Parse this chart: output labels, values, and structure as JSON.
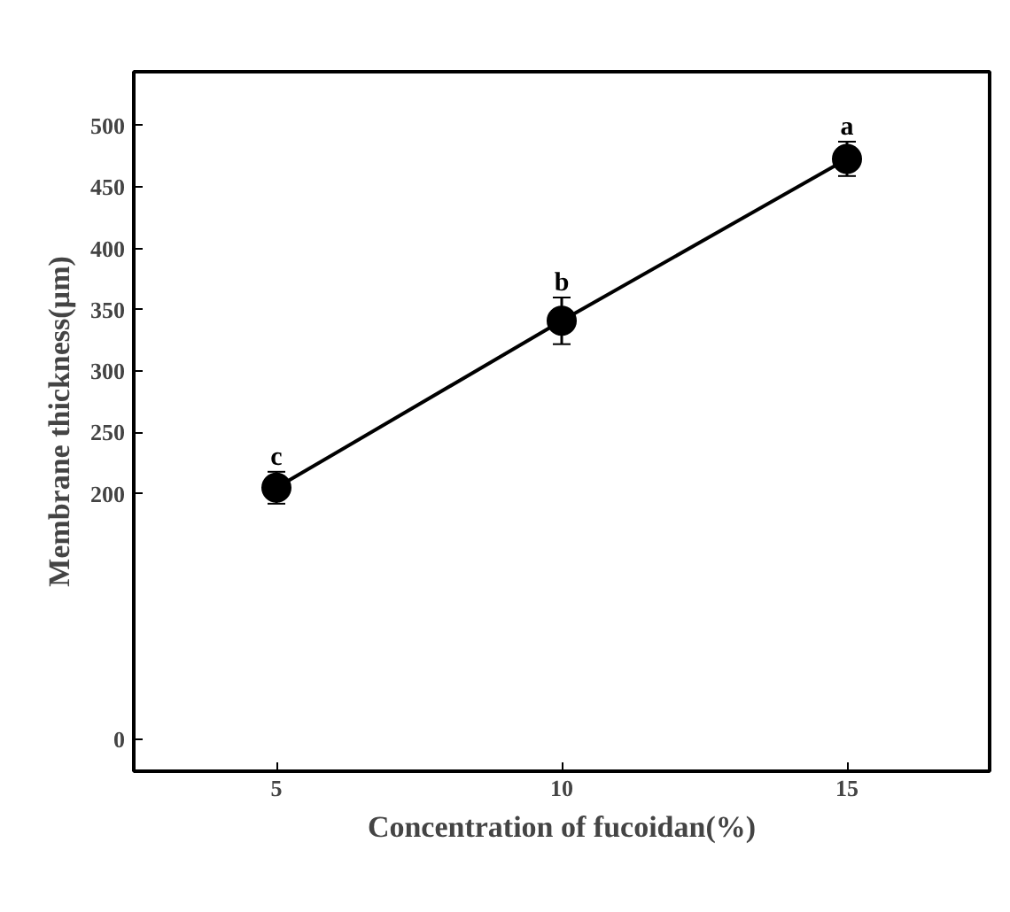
{
  "chart_data": {
    "type": "line",
    "xlabel": "Concentration of fucoidan(%)",
    "ylabel": "Membrane thickness(µm)",
    "x": [
      5,
      10,
      15
    ],
    "series": [
      {
        "color": "#000000",
        "values": [
          205,
          341,
          473
        ],
        "errors": [
          13,
          19,
          14
        ]
      }
    ],
    "xlim": [
      2.5,
      17.5
    ],
    "xticks": [
      5,
      10,
      15
    ],
    "ylim": [
      -26,
      544
    ],
    "yticks": [
      0,
      200,
      250,
      300,
      350,
      400,
      450,
      500
    ],
    "annotations": [
      {
        "text": "c",
        "x": 5,
        "y": 218
      },
      {
        "text": "b",
        "x": 10,
        "y": 360
      },
      {
        "text": "a",
        "x": 15,
        "y": 487
      }
    ],
    "marker": "circle",
    "line_style": "solid",
    "grid": false
  }
}
